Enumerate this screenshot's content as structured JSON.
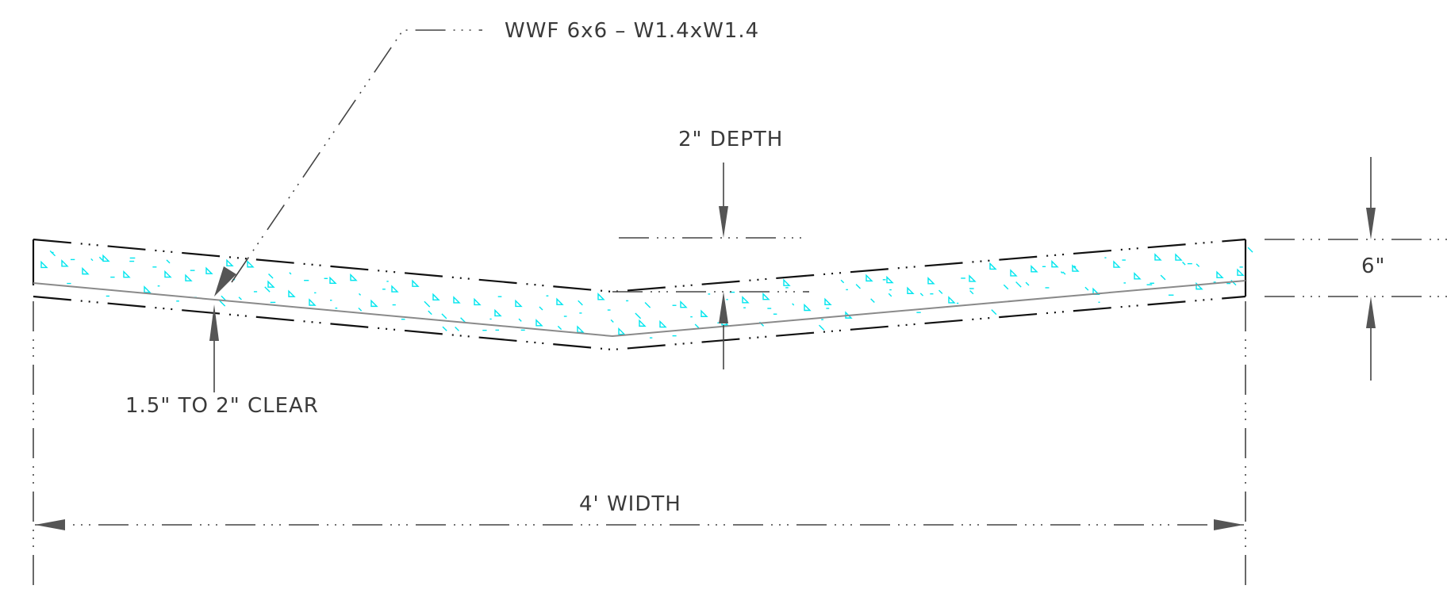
{
  "labels": {
    "mesh_note": "WWF 6x6 – W1.4xW1.4",
    "depth_note": "2\" DEPTH",
    "thickness_note": "6\"",
    "clear_note": "1.5\" TO 2\" CLEAR",
    "width_note": "4' WIDTH"
  },
  "colors": {
    "concrete_hatch": "#00e5ee",
    "outline": "#111111",
    "dimension": "#444444",
    "mesh_line": "#8a8a8a"
  }
}
